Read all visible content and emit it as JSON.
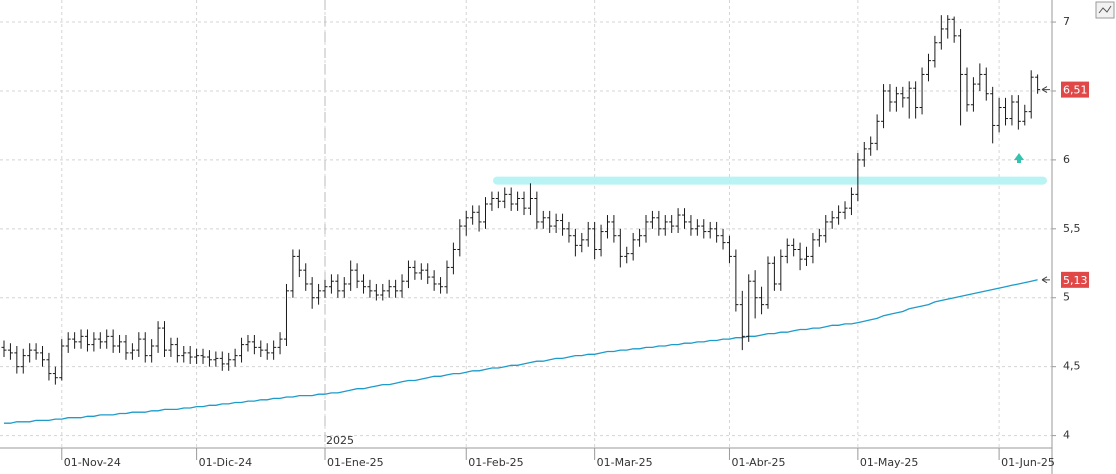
{
  "chart_data": {
    "type": "ohlc",
    "color": "#1a1a1a",
    "ma_color": "#1d9ccb",
    "grid": true,
    "ylim": [
      3.91,
      7.16
    ],
    "yticks": [
      4,
      {
        "value": 4.5,
        "label": "4,5"
      },
      5,
      {
        "value": 5.5,
        "label": "5,5"
      },
      6,
      {
        "value": 6.5,
        "label": "6,5"
      },
      7
    ],
    "year_label": "2025",
    "resistance": 5.85,
    "price_label": "6,51",
    "ma_label": "5,13",
    "categories": [
      null,
      null,
      null,
      null,
      null,
      null,
      null,
      null,
      null,
      "01-Nov-24",
      null,
      null,
      null,
      null,
      null,
      null,
      null,
      null,
      null,
      null,
      null,
      null,
      null,
      null,
      null,
      null,
      null,
      null,
      null,
      null,
      "01-Dic-24",
      null,
      null,
      null,
      null,
      null,
      null,
      null,
      null,
      null,
      null,
      null,
      null,
      null,
      null,
      null,
      null,
      null,
      null,
      null,
      "01-Ene-25",
      null,
      null,
      null,
      null,
      null,
      null,
      null,
      null,
      null,
      null,
      null,
      null,
      null,
      null,
      null,
      null,
      null,
      null,
      null,
      null,
      null,
      "01-Feb-25",
      null,
      null,
      null,
      null,
      null,
      null,
      null,
      null,
      null,
      null,
      null,
      null,
      null,
      null,
      null,
      null,
      null,
      null,
      null,
      "01-Mar-25",
      null,
      null,
      null,
      null,
      null,
      null,
      null,
      null,
      null,
      null,
      null,
      null,
      null,
      null,
      null,
      null,
      null,
      null,
      null,
      null,
      "01-Abr-25",
      null,
      null,
      null,
      null,
      null,
      null,
      null,
      null,
      null,
      null,
      null,
      null,
      null,
      null,
      null,
      null,
      null,
      null,
      null,
      "01-May-25",
      null,
      null,
      null,
      null,
      null,
      null,
      null,
      null,
      null,
      null,
      null,
      null,
      null,
      null,
      null,
      null,
      null,
      null,
      null,
      null,
      null,
      "01-Jun-25",
      null,
      null,
      null,
      null,
      null,
      null
    ],
    "ohlc": [
      [
        4.64,
        4.69,
        4.57,
        4.62
      ],
      [
        4.62,
        4.67,
        4.55,
        4.6
      ],
      [
        4.6,
        4.65,
        4.45,
        4.5
      ],
      [
        4.5,
        4.63,
        4.45,
        4.58
      ],
      [
        4.58,
        4.67,
        4.53,
        4.62
      ],
      [
        4.62,
        4.67,
        4.55,
        4.6
      ],
      [
        4.6,
        4.65,
        4.5,
        4.55
      ],
      [
        4.55,
        4.6,
        4.4,
        4.45
      ],
      [
        4.45,
        4.5,
        4.37,
        4.42
      ],
      [
        4.42,
        4.7,
        4.4,
        4.65
      ],
      [
        4.65,
        4.75,
        4.6,
        4.7
      ],
      [
        4.7,
        4.75,
        4.63,
        4.68
      ],
      [
        4.68,
        4.77,
        4.63,
        4.72
      ],
      [
        4.72,
        4.77,
        4.61,
        4.66
      ],
      [
        4.66,
        4.75,
        4.61,
        4.7
      ],
      [
        4.7,
        4.75,
        4.63,
        4.68
      ],
      [
        4.68,
        4.77,
        4.63,
        4.72
      ],
      [
        4.72,
        4.77,
        4.6,
        4.65
      ],
      [
        4.65,
        4.73,
        4.6,
        4.68
      ],
      [
        4.68,
        4.73,
        4.55,
        4.6
      ],
      [
        4.6,
        4.67,
        4.55,
        4.62
      ],
      [
        4.62,
        4.75,
        4.57,
        4.7
      ],
      [
        4.7,
        4.75,
        4.53,
        4.58
      ],
      [
        4.58,
        4.7,
        4.53,
        4.65
      ],
      [
        4.65,
        4.83,
        4.6,
        4.78
      ],
      [
        4.78,
        4.83,
        4.57,
        4.62
      ],
      [
        4.62,
        4.71,
        4.57,
        4.66
      ],
      [
        4.66,
        4.71,
        4.53,
        4.58
      ],
      [
        4.58,
        4.65,
        4.53,
        4.6
      ],
      [
        4.6,
        4.65,
        4.52,
        4.57
      ],
      [
        4.57,
        4.63,
        4.52,
        4.58
      ],
      [
        4.58,
        4.63,
        4.52,
        4.57
      ],
      [
        4.57,
        4.62,
        4.5,
        4.55
      ],
      [
        4.55,
        4.61,
        4.5,
        4.56
      ],
      [
        4.56,
        4.61,
        4.47,
        4.52
      ],
      [
        4.52,
        4.6,
        4.47,
        4.55
      ],
      [
        4.55,
        4.63,
        4.5,
        4.58
      ],
      [
        4.58,
        4.71,
        4.53,
        4.66
      ],
      [
        4.66,
        4.73,
        4.61,
        4.68
      ],
      [
        4.68,
        4.73,
        4.59,
        4.64
      ],
      [
        4.64,
        4.69,
        4.57,
        4.62
      ],
      [
        4.62,
        4.67,
        4.55,
        4.6
      ],
      [
        4.6,
        4.69,
        4.55,
        4.64
      ],
      [
        4.64,
        4.75,
        4.59,
        4.7
      ],
      [
        4.7,
        5.1,
        4.65,
        5.05
      ],
      [
        5.05,
        5.35,
        5.0,
        5.3
      ],
      [
        5.3,
        5.35,
        5.15,
        5.2
      ],
      [
        5.2,
        5.25,
        5.05,
        5.1
      ],
      [
        5.1,
        5.15,
        4.92,
        5.0
      ],
      [
        5.0,
        5.1,
        4.95,
        5.05
      ],
      [
        5.05,
        5.13,
        5.0,
        5.08
      ],
      [
        5.08,
        5.17,
        5.03,
        5.12
      ],
      [
        5.12,
        5.17,
        5.0,
        5.05
      ],
      [
        5.05,
        5.15,
        5.0,
        5.1
      ],
      [
        5.1,
        5.27,
        5.05,
        5.2
      ],
      [
        5.2,
        5.25,
        5.07,
        5.12
      ],
      [
        5.12,
        5.17,
        5.03,
        5.08
      ],
      [
        5.08,
        5.13,
        5.0,
        5.05
      ],
      [
        5.05,
        5.1,
        4.98,
        5.02
      ],
      [
        5.02,
        5.1,
        4.98,
        5.05
      ],
      [
        5.05,
        5.13,
        5.0,
        5.08
      ],
      [
        5.08,
        5.13,
        5.0,
        5.05
      ],
      [
        5.05,
        5.17,
        5.0,
        5.12
      ],
      [
        5.12,
        5.27,
        5.07,
        5.22
      ],
      [
        5.22,
        5.27,
        5.13,
        5.18
      ],
      [
        5.18,
        5.25,
        5.13,
        5.2
      ],
      [
        5.2,
        5.25,
        5.1,
        5.15
      ],
      [
        5.15,
        5.2,
        5.05,
        5.1
      ],
      [
        5.1,
        5.15,
        5.03,
        5.08
      ],
      [
        5.08,
        5.27,
        5.03,
        5.22
      ],
      [
        5.22,
        5.4,
        5.17,
        5.35
      ],
      [
        5.35,
        5.57,
        5.3,
        5.52
      ],
      [
        5.52,
        5.63,
        5.45,
        5.58
      ],
      [
        5.58,
        5.67,
        5.53,
        5.62
      ],
      [
        5.62,
        5.67,
        5.48,
        5.55
      ],
      [
        5.55,
        5.73,
        5.5,
        5.68
      ],
      [
        5.68,
        5.77,
        5.63,
        5.72
      ],
      [
        5.72,
        5.77,
        5.65,
        5.7
      ],
      [
        5.7,
        5.8,
        5.65,
        5.75
      ],
      [
        5.75,
        5.8,
        5.63,
        5.68
      ],
      [
        5.68,
        5.77,
        5.63,
        5.72
      ],
      [
        5.72,
        5.77,
        5.6,
        5.65
      ],
      [
        5.65,
        5.83,
        5.6,
        5.72
      ],
      [
        5.72,
        5.77,
        5.5,
        5.55
      ],
      [
        5.55,
        5.63,
        5.5,
        5.58
      ],
      [
        5.58,
        5.63,
        5.47,
        5.52
      ],
      [
        5.52,
        5.61,
        5.47,
        5.56
      ],
      [
        5.56,
        5.61,
        5.45,
        5.5
      ],
      [
        5.5,
        5.55,
        5.4,
        5.45
      ],
      [
        5.45,
        5.5,
        5.3,
        5.38
      ],
      [
        5.38,
        5.47,
        5.33,
        5.42
      ],
      [
        5.42,
        5.55,
        5.37,
        5.5
      ],
      [
        5.5,
        5.55,
        5.28,
        5.35
      ],
      [
        5.35,
        5.53,
        5.3,
        5.48
      ],
      [
        5.48,
        5.6,
        5.43,
        5.55
      ],
      [
        5.55,
        5.6,
        5.4,
        5.45
      ],
      [
        5.45,
        5.5,
        5.22,
        5.3
      ],
      [
        5.3,
        5.37,
        5.25,
        5.32
      ],
      [
        5.32,
        5.47,
        5.27,
        5.42
      ],
      [
        5.42,
        5.5,
        5.37,
        5.45
      ],
      [
        5.45,
        5.6,
        5.4,
        5.55
      ],
      [
        5.55,
        5.63,
        5.5,
        5.58
      ],
      [
        5.58,
        5.63,
        5.45,
        5.5
      ],
      [
        5.5,
        5.6,
        5.45,
        5.55
      ],
      [
        5.55,
        5.6,
        5.47,
        5.52
      ],
      [
        5.52,
        5.65,
        5.47,
        5.6
      ],
      [
        5.6,
        5.65,
        5.5,
        5.55
      ],
      [
        5.55,
        5.6,
        5.45,
        5.5
      ],
      [
        5.5,
        5.57,
        5.45,
        5.52
      ],
      [
        5.52,
        5.57,
        5.43,
        5.48
      ],
      [
        5.48,
        5.55,
        5.43,
        5.5
      ],
      [
        5.5,
        5.55,
        5.4,
        5.45
      ],
      [
        5.45,
        5.5,
        5.35,
        5.4
      ],
      [
        5.4,
        5.45,
        5.25,
        5.3
      ],
      [
        5.3,
        5.35,
        4.9,
        4.95
      ],
      [
        4.95,
        5.05,
        4.62,
        4.72
      ],
      [
        4.72,
        5.17,
        4.68,
        5.12
      ],
      [
        5.12,
        5.2,
        4.85,
        5.0
      ],
      [
        5.0,
        5.08,
        4.88,
        4.95
      ],
      [
        4.95,
        5.3,
        4.92,
        5.25
      ],
      [
        5.25,
        5.3,
        5.05,
        5.1
      ],
      [
        5.1,
        5.35,
        5.05,
        5.3
      ],
      [
        5.3,
        5.43,
        5.25,
        5.38
      ],
      [
        5.38,
        5.43,
        5.3,
        5.35
      ],
      [
        5.35,
        5.4,
        5.2,
        5.28
      ],
      [
        5.28,
        5.37,
        5.23,
        5.3
      ],
      [
        5.3,
        5.47,
        5.25,
        5.42
      ],
      [
        5.42,
        5.5,
        5.37,
        5.45
      ],
      [
        5.45,
        5.6,
        5.4,
        5.55
      ],
      [
        5.55,
        5.63,
        5.5,
        5.58
      ],
      [
        5.58,
        5.67,
        5.53,
        5.62
      ],
      [
        5.62,
        5.7,
        5.57,
        5.65
      ],
      [
        5.65,
        5.8,
        5.6,
        5.75
      ],
      [
        5.75,
        6.05,
        5.7,
        6.0
      ],
      [
        6.0,
        6.13,
        5.95,
        6.08
      ],
      [
        6.08,
        6.17,
        6.03,
        6.12
      ],
      [
        6.12,
        6.33,
        6.07,
        6.28
      ],
      [
        6.28,
        6.55,
        6.23,
        6.5
      ],
      [
        6.5,
        6.55,
        6.35,
        6.42
      ],
      [
        6.42,
        6.53,
        6.35,
        6.48
      ],
      [
        6.48,
        6.53,
        6.38,
        6.45
      ],
      [
        6.45,
        6.57,
        6.3,
        6.52
      ],
      [
        6.52,
        6.57,
        6.3,
        6.38
      ],
      [
        6.38,
        6.67,
        6.33,
        6.62
      ],
      [
        6.62,
        6.77,
        6.57,
        6.72
      ],
      [
        6.72,
        6.9,
        6.67,
        6.85
      ],
      [
        6.85,
        7.05,
        6.8,
        6.95
      ],
      [
        6.95,
        7.05,
        6.88,
        7.02
      ],
      [
        7.02,
        7.04,
        6.85,
        6.9
      ],
      [
        6.9,
        6.95,
        6.25,
        6.62
      ],
      [
        6.62,
        6.67,
        6.35,
        6.4
      ],
      [
        6.4,
        6.6,
        6.35,
        6.55
      ],
      [
        6.55,
        6.7,
        6.5,
        6.62
      ],
      [
        6.62,
        6.67,
        6.43,
        6.48
      ],
      [
        6.48,
        6.53,
        6.12,
        6.25
      ],
      [
        6.25,
        6.45,
        6.2,
        6.38
      ],
      [
        6.38,
        6.45,
        6.25,
        6.3
      ],
      [
        6.3,
        6.47,
        6.25,
        6.42
      ],
      [
        6.42,
        6.47,
        6.22,
        6.28
      ],
      [
        6.28,
        6.4,
        6.25,
        6.35
      ],
      [
        6.35,
        6.65,
        6.3,
        6.6
      ],
      [
        6.6,
        6.62,
        6.48,
        6.51
      ]
    ],
    "ma_values": [
      4.09,
      4.09,
      4.1,
      4.1,
      4.1,
      4.11,
      4.11,
      4.11,
      4.12,
      4.12,
      4.13,
      4.13,
      4.13,
      4.14,
      4.14,
      4.15,
      4.15,
      4.15,
      4.16,
      4.16,
      4.17,
      4.17,
      4.17,
      4.18,
      4.18,
      4.19,
      4.19,
      4.19,
      4.2,
      4.2,
      4.21,
      4.21,
      4.22,
      4.22,
      4.23,
      4.23,
      4.24,
      4.24,
      4.25,
      4.25,
      4.26,
      4.26,
      4.27,
      4.27,
      4.28,
      4.28,
      4.29,
      4.29,
      4.29,
      4.3,
      4.3,
      4.31,
      4.31,
      4.32,
      4.33,
      4.34,
      4.34,
      4.35,
      4.36,
      4.37,
      4.37,
      4.38,
      4.39,
      4.4,
      4.4,
      4.41,
      4.42,
      4.43,
      4.43,
      4.44,
      4.45,
      4.45,
      4.46,
      4.47,
      4.47,
      4.48,
      4.49,
      4.49,
      4.5,
      4.51,
      4.51,
      4.52,
      4.53,
      4.54,
      4.54,
      4.55,
      4.56,
      4.56,
      4.57,
      4.58,
      4.58,
      4.59,
      4.59,
      4.6,
      4.61,
      4.61,
      4.62,
      4.62,
      4.63,
      4.63,
      4.64,
      4.64,
      4.65,
      4.65,
      4.66,
      4.66,
      4.67,
      4.67,
      4.68,
      4.68,
      4.69,
      4.69,
      4.7,
      4.7,
      4.71,
      4.71,
      4.72,
      4.72,
      4.73,
      4.74,
      4.74,
      4.75,
      4.75,
      4.76,
      4.77,
      4.77,
      4.78,
      4.78,
      4.79,
      4.8,
      4.8,
      4.81,
      4.81,
      4.82,
      4.83,
      4.84,
      4.85,
      4.87,
      4.88,
      4.89,
      4.9,
      4.92,
      4.93,
      4.94,
      4.95,
      4.97,
      4.98,
      4.99,
      5.0,
      5.01,
      5.02,
      5.03,
      5.04,
      5.05,
      5.06,
      5.07,
      5.08,
      5.09,
      5.1,
      5.11,
      5.12,
      5.13
    ]
  }
}
